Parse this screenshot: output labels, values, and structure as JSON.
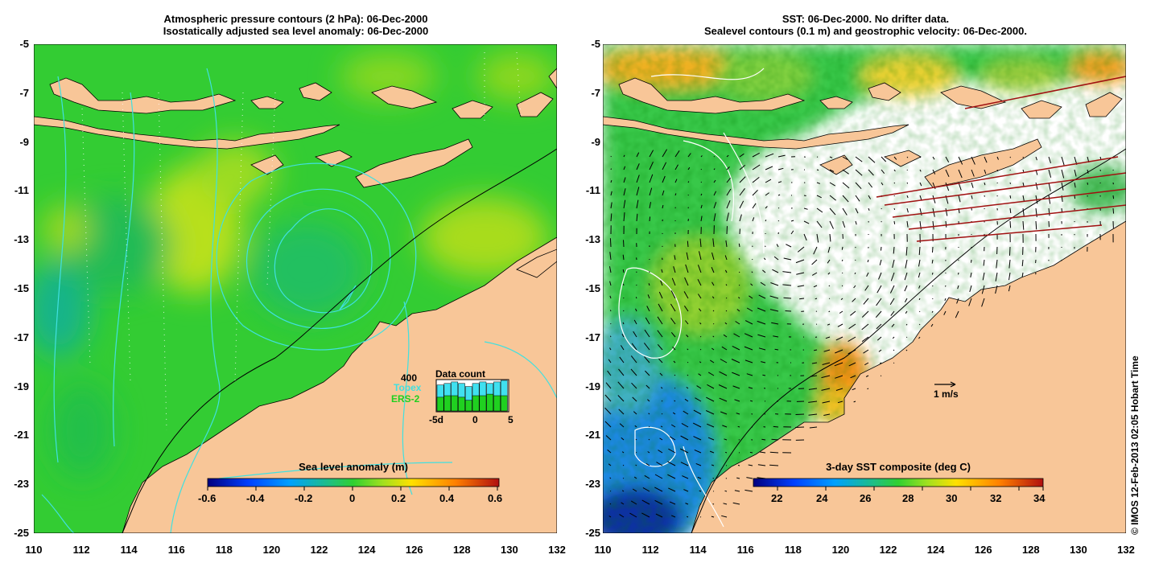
{
  "left": {
    "title_line1": "Atmospheric pressure contours (2 hPa): 06-Dec-2000",
    "title_line2": "Isostatically adjusted sea level anomaly: 06-Dec-2000",
    "colorbar_title": "Sea level anomaly (m)",
    "colorbar_ticks": [
      "-0.6",
      "-0.4",
      "-0.2",
      "0",
      "0.2",
      "0.4",
      "0.6"
    ],
    "data_count": {
      "title": "Data count",
      "scale": "400",
      "series1": "Topex",
      "series2": "ERS-2",
      "axis_min": "-5d",
      "axis_mid": "0",
      "axis_max": "5",
      "topex_heights": [
        0.85,
        0.9,
        0.95,
        0.9,
        0.8,
        0.9,
        0.95,
        0.9,
        0.95,
        1.0
      ],
      "ers_heights": [
        0.45,
        0.5,
        0.5,
        0.45,
        0.35,
        0.5,
        0.5,
        0.55,
        0.5,
        0.5
      ]
    }
  },
  "right": {
    "title_line1": "SST: 06-Dec-2000. No drifter data.",
    "title_line2": "Sealevel contours (0.1 m) and geostrophic velocity: 06-Dec-2000.",
    "colorbar_title": "3-day SST composite (deg C)",
    "colorbar_ticks": [
      "22",
      "24",
      "26",
      "28",
      "30",
      "32",
      "34"
    ],
    "velocity_scale": "1 m/s"
  },
  "axes": {
    "lat_labels": [
      "-5",
      "-7",
      "-9",
      "-11",
      "-13",
      "-15",
      "-17",
      "-19",
      "-21",
      "-23",
      "-25"
    ],
    "lon_labels": [
      "110",
      "112",
      "114",
      "116",
      "118",
      "120",
      "122",
      "124",
      "126",
      "128",
      "130",
      "132"
    ]
  },
  "copyright": "© IMOS 12-Feb-2013 02:05 Hobart Time",
  "colors": {
    "land": "#f8c698",
    "ocean_green": "#2fd22f",
    "contour": "#40e0e0"
  }
}
